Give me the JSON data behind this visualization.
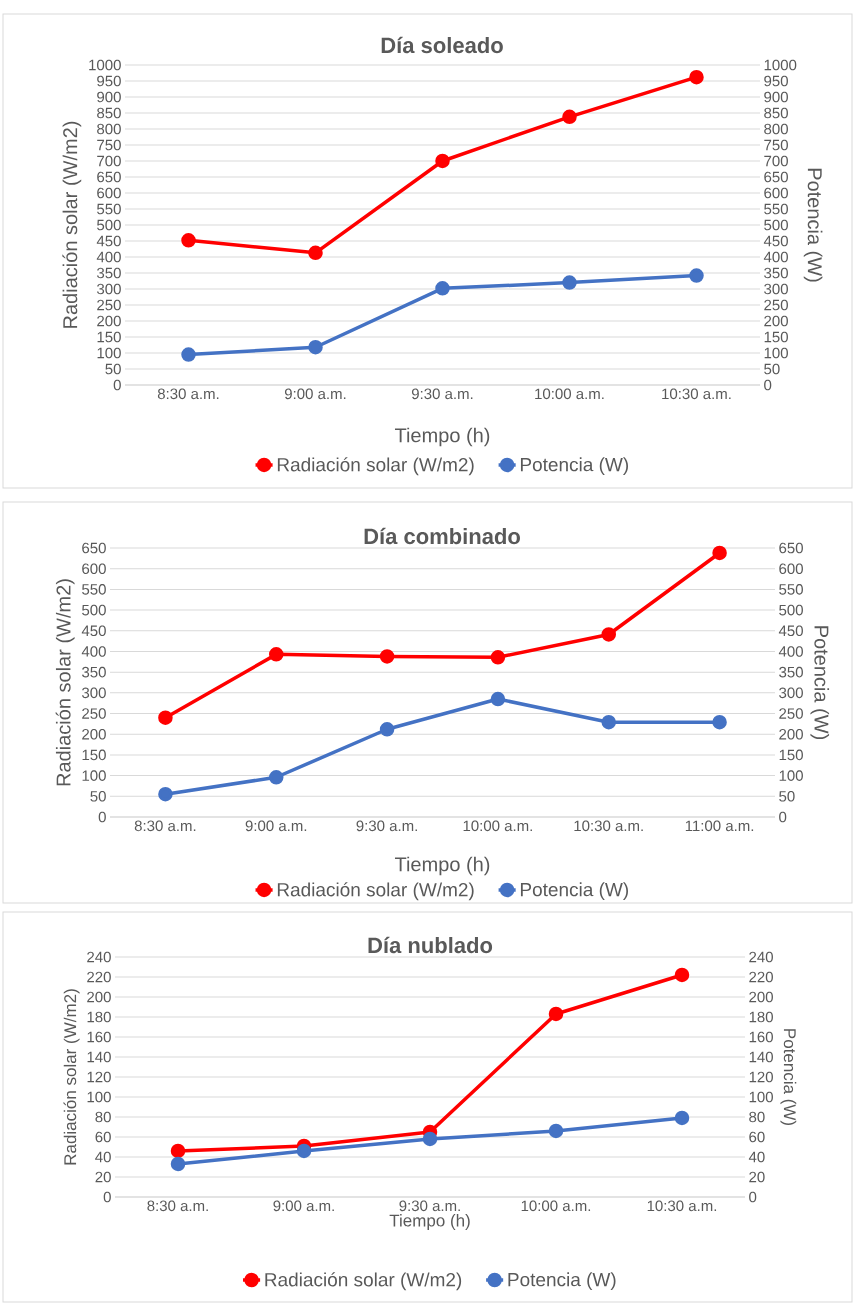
{
  "chart_data": [
    {
      "type": "line",
      "title": "Día soleado",
      "xlabel": "Tiempo (h)",
      "ylabel": "Radiación solar (W/m2)",
      "y2label": "Potencia (W)",
      "categories": [
        "8:30 a.m.",
        "9:00 a.m.",
        "9:30 a.m.",
        "10:00 a.m.",
        "10:30 a.m."
      ],
      "series": [
        {
          "name": "Radiación solar (W/m2)",
          "color": "#ff0000",
          "values": [
            452,
            413,
            700,
            838,
            962
          ]
        },
        {
          "name": "Potencia (W)",
          "color": "#4472c4",
          "axis": "y2",
          "values": [
            95,
            118,
            302,
            320,
            342
          ]
        }
      ],
      "ylim": [
        0,
        1000
      ],
      "yticks": [
        0,
        50,
        100,
        150,
        200,
        250,
        300,
        350,
        400,
        450,
        500,
        550,
        600,
        650,
        700,
        750,
        800,
        850,
        900,
        950,
        1000
      ],
      "y2lim": [
        0,
        1000
      ],
      "y2ticks": [
        0,
        50,
        100,
        150,
        200,
        250,
        300,
        350,
        400,
        450,
        500,
        550,
        600,
        650,
        700,
        750,
        800,
        850,
        900,
        950,
        1000
      ],
      "grid": "y",
      "legend": "bottom",
      "marker": "circle",
      "line_style": "solid"
    },
    {
      "type": "line",
      "title": "Día combinado",
      "xlabel": "Tiempo (h)",
      "ylabel": "Radiación solar (W/m2)",
      "y2label": "Potencia (W)",
      "categories": [
        "8:30 a.m.",
        "9:00 a.m.",
        "9:30 a.m.",
        "10:00 a.m.",
        "10:30 a.m.",
        "11:00 a.m."
      ],
      "series": [
        {
          "name": "Radiación solar (W/m2)",
          "color": "#ff0000",
          "values": [
            240,
            393,
            388,
            386,
            441,
            638
          ]
        },
        {
          "name": "Potencia (W)",
          "color": "#4472c4",
          "axis": "y2",
          "values": [
            55,
            96,
            212,
            285,
            229,
            229
          ]
        }
      ],
      "ylim": [
        0,
        650
      ],
      "yticks": [
        0,
        50,
        100,
        150,
        200,
        250,
        300,
        350,
        400,
        450,
        500,
        550,
        600,
        650
      ],
      "y2lim": [
        0,
        650
      ],
      "y2ticks": [
        0,
        50,
        100,
        150,
        200,
        250,
        300,
        350,
        400,
        450,
        500,
        550,
        600,
        650
      ],
      "grid": "y",
      "legend": "bottom",
      "marker": "circle",
      "line_style": "solid"
    },
    {
      "type": "line",
      "title": "Día nublado",
      "xlabel": "Tiempo (h)",
      "ylabel": "Radiación solar (W/m2)",
      "y2label": "Potencia (W)",
      "categories": [
        "8:30 a.m.",
        "9:00 a.m.",
        "9:30 a.m.",
        "10:00 a.m.",
        "10:30 a.m."
      ],
      "series": [
        {
          "name": "Radiación solar (W/m2)",
          "color": "#ff0000",
          "values": [
            46,
            51,
            65,
            183,
            222
          ]
        },
        {
          "name": "Potencia (W)",
          "color": "#4472c4",
          "axis": "y2",
          "values": [
            33,
            46,
            58,
            66,
            79
          ]
        }
      ],
      "ylim": [
        0,
        240
      ],
      "yticks": [
        0,
        20,
        40,
        60,
        80,
        100,
        120,
        140,
        160,
        180,
        200,
        220,
        240
      ],
      "y2lim": [
        0,
        240
      ],
      "y2ticks": [
        0,
        20,
        40,
        60,
        80,
        100,
        120,
        140,
        160,
        180,
        200,
        220,
        240
      ],
      "grid": "y",
      "legend": "bottom",
      "marker": "circle",
      "line_style": "solid"
    }
  ]
}
